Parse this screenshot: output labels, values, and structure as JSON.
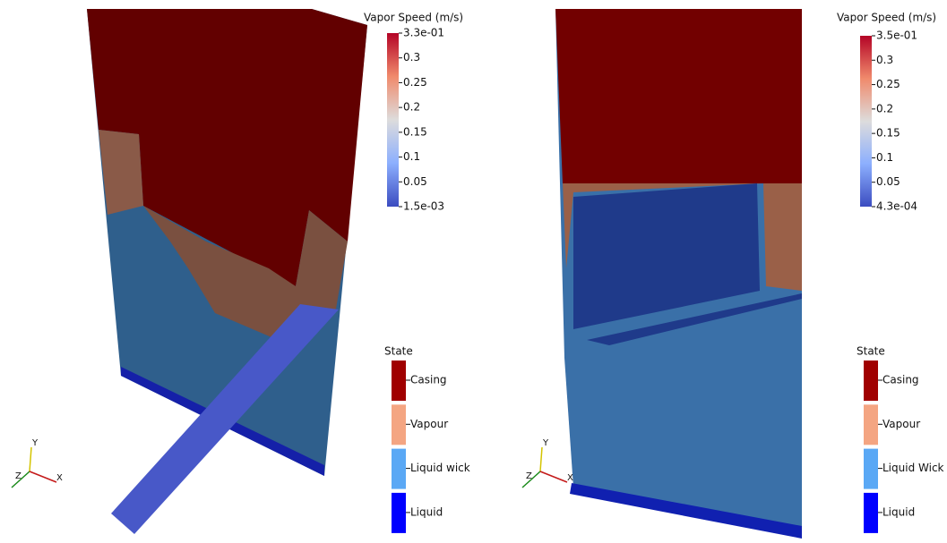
{
  "views": [
    {
      "colorbar": {
        "title": "Vapor Speed (m/s)",
        "labels": [
          "3.3e-01",
          "0.3",
          "0.25",
          "0.2",
          "0.15",
          "0.1",
          "0.05",
          "1.5e-03"
        ]
      },
      "state": {
        "title": "State",
        "entries": [
          "Casing",
          "Vapour",
          "Liquid wick",
          "Liquid"
        ]
      },
      "axes": [
        "Y",
        "Z",
        "X"
      ]
    },
    {
      "colorbar": {
        "title": "Vapor Speed (m/s)",
        "labels": [
          "3.5e-01",
          "0.3",
          "0.25",
          "0.2",
          "0.15",
          "0.1",
          "0.05",
          "4.3e-04"
        ]
      },
      "state": {
        "title": "State",
        "entries": [
          "Casing",
          "Vapour",
          "Liquid Wick",
          "Liquid"
        ]
      },
      "axes": [
        "Y",
        "Z",
        "X"
      ]
    }
  ]
}
